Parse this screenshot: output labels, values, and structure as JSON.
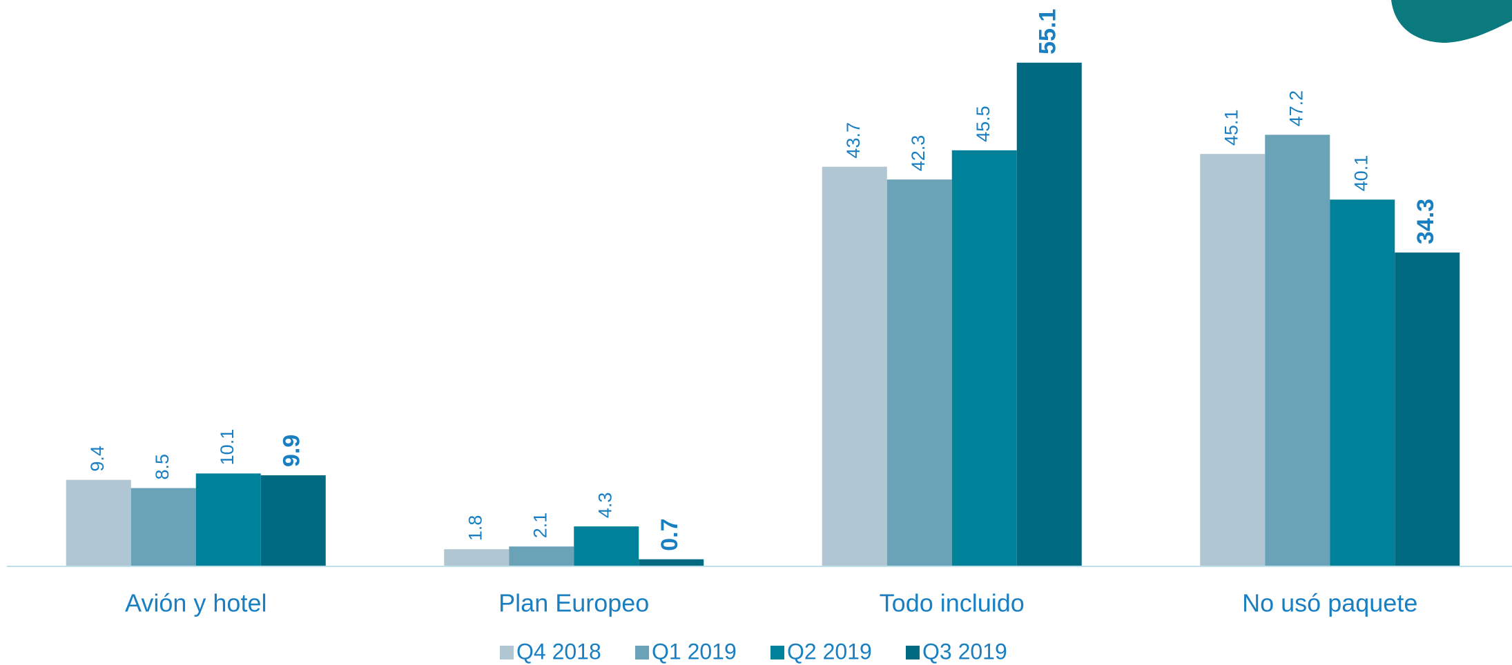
{
  "chart_data": {
    "type": "bar",
    "categories": [
      "Avión y hotel",
      "Plan Europeo",
      "Todo incluido",
      "No usó paquete"
    ],
    "series": [
      {
        "name": "Q4 2018",
        "color": "#b0c6d2",
        "values": [
          9.4,
          1.8,
          43.7,
          45.1
        ]
      },
      {
        "name": "Q1 2019",
        "color": "#6aa3b8",
        "values": [
          8.5,
          2.1,
          42.3,
          47.2
        ]
      },
      {
        "name": "Q2 2019",
        "color": "#00819a",
        "values": [
          10.1,
          4.3,
          45.5,
          40.1
        ]
      },
      {
        "name": "Q3 2019",
        "color": "#006a83",
        "values": [
          9.9,
          0.7,
          55.1,
          34.3
        ]
      }
    ],
    "ylim": [
      0,
      60
    ],
    "legend": "bottom"
  }
}
